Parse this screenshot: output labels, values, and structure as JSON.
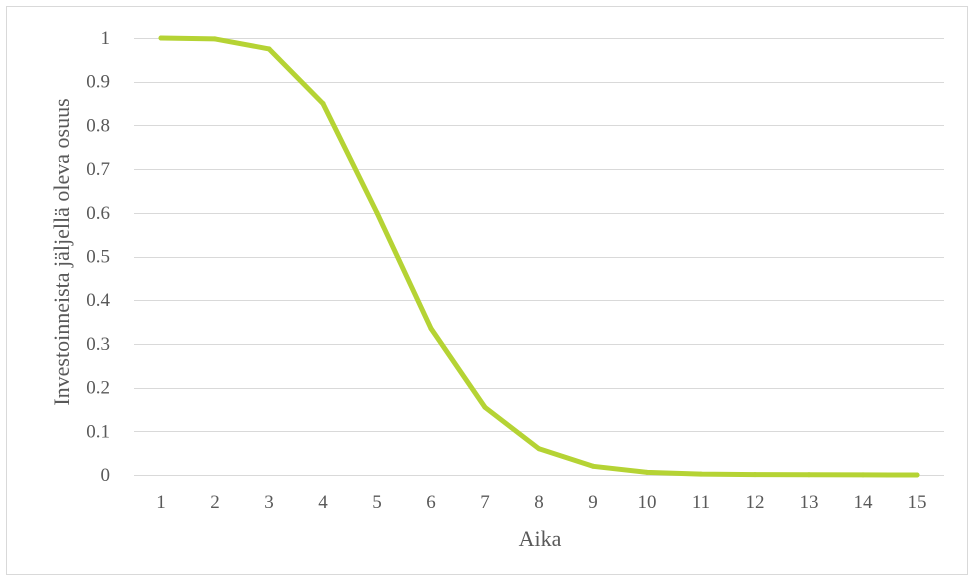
{
  "chart_data": {
    "type": "line",
    "title": "",
    "xlabel": "Aika",
    "ylabel": "Investoinneista jäljellä oleva osuus",
    "x": [
      1,
      2,
      3,
      4,
      5,
      6,
      7,
      8,
      9,
      10,
      11,
      12,
      13,
      14,
      15
    ],
    "categories": [
      "1",
      "2",
      "3",
      "4",
      "5",
      "6",
      "7",
      "8",
      "9",
      "10",
      "11",
      "12",
      "13",
      "14",
      "15"
    ],
    "series": [
      {
        "values": [
          1.0,
          0.998,
          0.975,
          0.85,
          0.6,
          0.335,
          0.155,
          0.06,
          0.02,
          0.006,
          0.002,
          0.001,
          0.0005,
          0.0002,
          0.0001
        ],
        "color": "#b5d334"
      }
    ],
    "yticks": [
      "0",
      "0.1",
      "0.2",
      "0.3",
      "0.4",
      "0.5",
      "0.6",
      "0.7",
      "0.8",
      "0.9",
      "1"
    ],
    "ylim": [
      0,
      1
    ],
    "grid": true,
    "grid_color": "#d9d9d9",
    "legend": "none"
  }
}
